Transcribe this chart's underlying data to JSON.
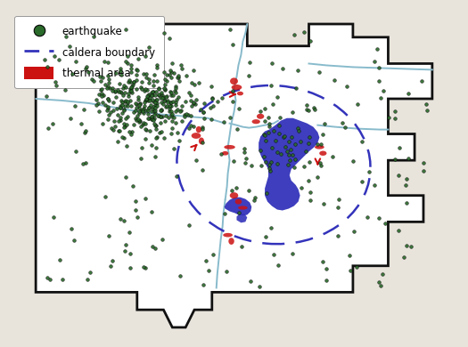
{
  "background_color": "#e8e4dc",
  "map_bg": "#ffffff",
  "park_boundary_color": "#111111",
  "river_color": "#88bbcc",
  "lake_color": "#3333bb",
  "caldera_color": "#3333bb",
  "thermal_color": "#cc1111",
  "eq_face": "#2a6a2a",
  "eq_edge": "#050505",
  "legend_bg": "#ffffff",
  "legend_items": [
    "earthquake",
    "caldera boundary",
    "thermal area"
  ],
  "seed": 42,
  "figsize": [
    5.25,
    3.9
  ],
  "dpi": 100
}
